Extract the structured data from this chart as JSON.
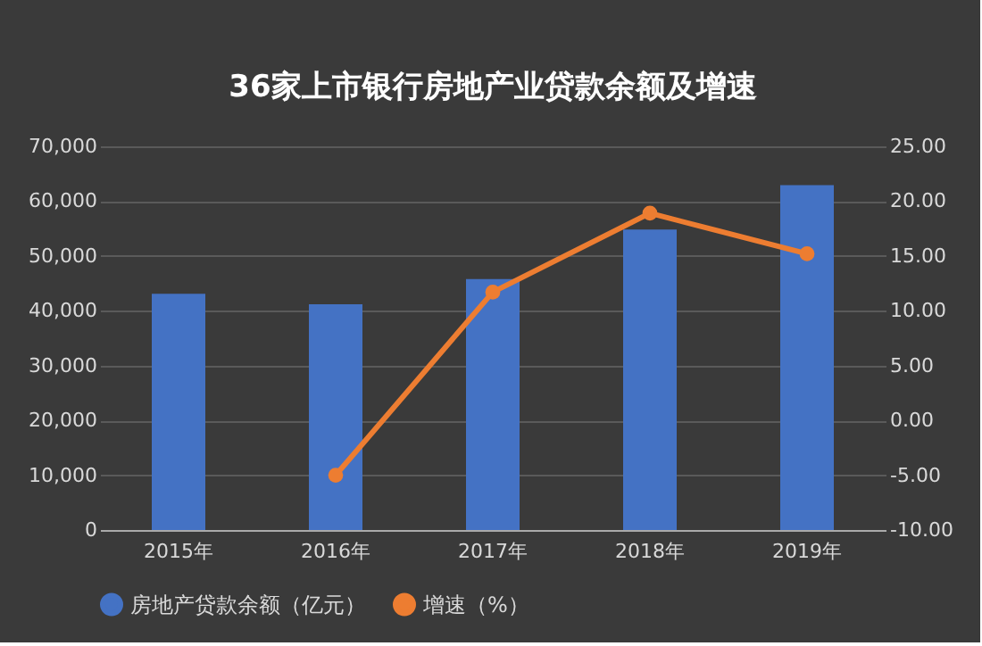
{
  "chart_data": {
    "type": "bar",
    "title": "36家上市银行房地产业贷款余额及增速",
    "categories": [
      "2015年",
      "2016年",
      "2017年",
      "2018年",
      "2019年"
    ],
    "series": [
      {
        "name": "房地产贷款余额（亿元）",
        "color": "#4472c4",
        "values": [
          43100,
          41200,
          45800,
          54800,
          62900
        ]
      },
      {
        "name": "增速（%）",
        "color": "#ed7d31",
        "type": "line",
        "axis": "y2",
        "marker": "circle",
        "values": [
          null,
          -5.0,
          11.7,
          18.9,
          15.2
        ]
      }
    ],
    "ylim": [
      0,
      70000
    ],
    "yticks": [
      {
        "value": 0,
        "label": "0"
      },
      {
        "value": 10000,
        "label": "10,000"
      },
      {
        "value": 20000,
        "label": "20,000"
      },
      {
        "value": 30000,
        "label": "30,000"
      },
      {
        "value": 40000,
        "label": "40,000"
      },
      {
        "value": 50000,
        "label": "50,000"
      },
      {
        "value": 60000,
        "label": "60,000"
      },
      {
        "value": 70000,
        "label": "70,000"
      }
    ],
    "y2lim": [
      -10,
      25
    ],
    "y2ticks": [
      {
        "value": -10,
        "label": "-10.00"
      },
      {
        "value": -5,
        "label": "-5.00"
      },
      {
        "value": 0,
        "label": "0.00"
      },
      {
        "value": 5,
        "label": "5.00"
      },
      {
        "value": 10,
        "label": "10.00"
      },
      {
        "value": 15,
        "label": "15.00"
      },
      {
        "value": 20,
        "label": "20.00"
      },
      {
        "value": 25,
        "label": "25.00"
      }
    ],
    "grid": "y",
    "legend": "bottom"
  }
}
